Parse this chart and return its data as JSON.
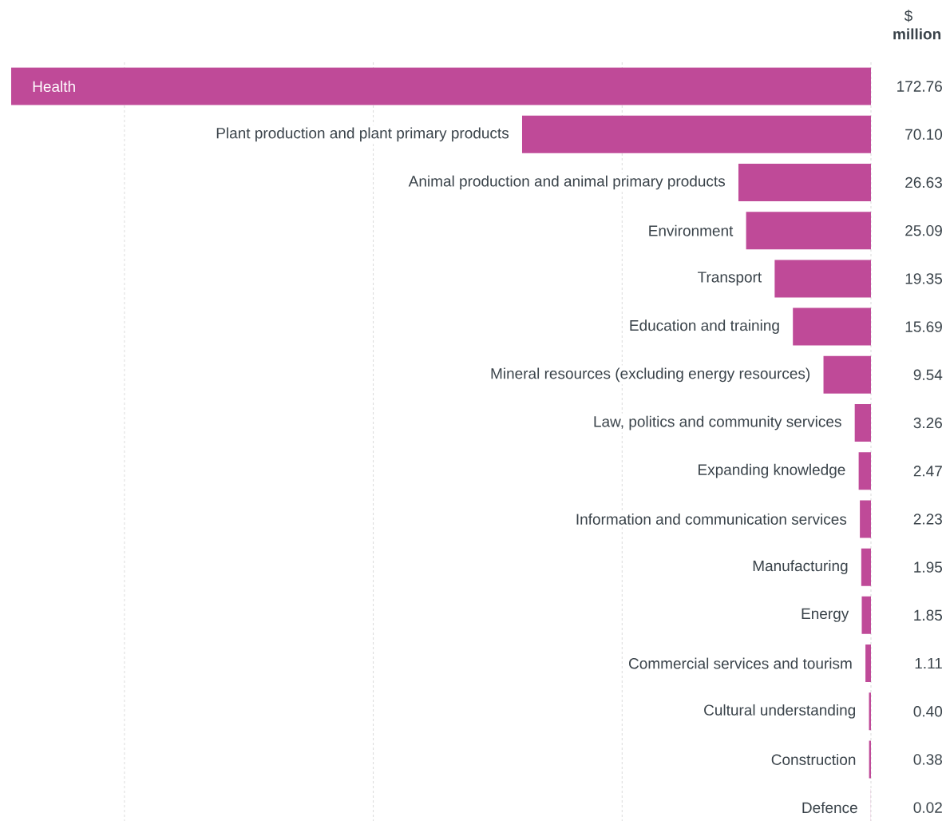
{
  "chart_data": {
    "type": "bar",
    "orientation": "horizontal",
    "annotations": [
      "$ **million**"
    ],
    "categories": [
      "Health",
      "Plant production and plant primary products",
      "Animal production and animal primary products",
      "Environment",
      "Transport",
      "Education and training",
      "Mineral resources (excluding energy resources)",
      "Law, politics and community services",
      "Expanding knowledge",
      "Information and communication services",
      "Manufacturing",
      "Energy",
      "Commercial services and tourism",
      "Cultural understanding",
      "Construction",
      "Defence"
    ],
    "values": [
      172.76,
      70.1,
      26.63,
      25.09,
      19.35,
      15.69,
      9.54,
      3.26,
      2.47,
      2.23,
      1.95,
      1.85,
      1.11,
      0.4,
      0.38,
      0.02
    ],
    "value_labels": [
      "172.76",
      "70.10",
      "26.63",
      "25.09",
      "19.35",
      "15.69",
      "9.54",
      "3.26",
      "2.47",
      "2.23",
      "1.95",
      "1.85",
      "1.11",
      "0.40",
      "0.38",
      "0.02"
    ],
    "color": "#bf4a98",
    "xlim": [
      172.76,
      0
    ],
    "xticks": [
      {
        "value": 0,
        "label": null
      },
      {
        "value": 50,
        "label": null
      },
      {
        "value": 100,
        "label": null
      },
      {
        "value": 150,
        "label": null
      }
    ],
    "grid": "x"
  }
}
